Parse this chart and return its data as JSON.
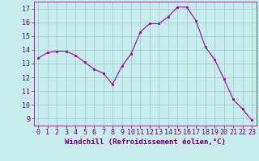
{
  "x": [
    0,
    1,
    2,
    3,
    4,
    5,
    6,
    7,
    8,
    9,
    10,
    11,
    12,
    13,
    14,
    15,
    16,
    17,
    18,
    19,
    20,
    21,
    22,
    23
  ],
  "y": [
    13.4,
    13.8,
    13.9,
    13.9,
    13.6,
    13.1,
    12.6,
    12.3,
    11.5,
    12.8,
    13.7,
    15.3,
    15.9,
    15.9,
    16.4,
    17.1,
    17.1,
    16.1,
    14.2,
    13.3,
    11.9,
    10.4,
    9.7,
    8.9
  ],
  "line_color": "#990099",
  "marker": "s",
  "marker_size": 2,
  "bg_color": "#c8ecec",
  "grid_color": "#99cccc",
  "xlabel": "Windchill (Refroidissement éolien,°C)",
  "xlabel_color": "#660066",
  "tick_color": "#660066",
  "ylim": [
    8.5,
    17.5
  ],
  "xlim": [
    -0.5,
    23.5
  ],
  "yticks": [
    9,
    10,
    11,
    12,
    13,
    14,
    15,
    16,
    17
  ],
  "xticks": [
    0,
    1,
    2,
    3,
    4,
    5,
    6,
    7,
    8,
    9,
    10,
    11,
    12,
    13,
    14,
    15,
    16,
    17,
    18,
    19,
    20,
    21,
    22,
    23
  ],
  "spine_color": "#660066",
  "tick_font_size": 6,
  "xlabel_font_size": 6.5
}
